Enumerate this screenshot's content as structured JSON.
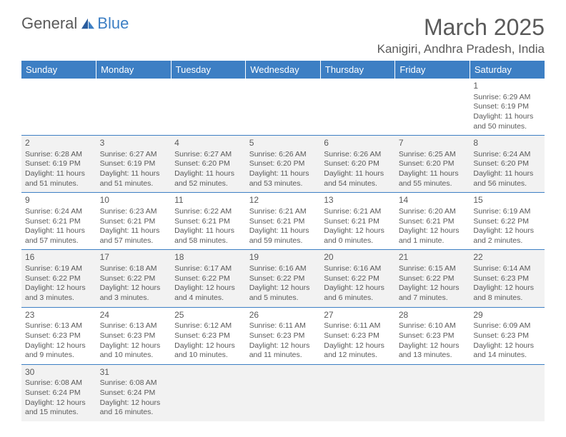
{
  "logo": {
    "text1": "General",
    "text2": "Blue"
  },
  "title": "March 2025",
  "location": "Kanigiri, Andhra Pradesh, India",
  "colors": {
    "header_bg": "#3d7fc4",
    "header_text": "#ffffff",
    "alt_row_bg": "#f2f2f2",
    "text": "#5a5a5a",
    "border": "#3d7fc4"
  },
  "weekdays": [
    "Sunday",
    "Monday",
    "Tuesday",
    "Wednesday",
    "Thursday",
    "Friday",
    "Saturday"
  ],
  "weeks": [
    [
      null,
      null,
      null,
      null,
      null,
      null,
      {
        "n": "1",
        "sr": "Sunrise: 6:29 AM",
        "ss": "Sunset: 6:19 PM",
        "dl": "Daylight: 11 hours and 50 minutes."
      }
    ],
    [
      {
        "n": "2",
        "sr": "Sunrise: 6:28 AM",
        "ss": "Sunset: 6:19 PM",
        "dl": "Daylight: 11 hours and 51 minutes."
      },
      {
        "n": "3",
        "sr": "Sunrise: 6:27 AM",
        "ss": "Sunset: 6:19 PM",
        "dl": "Daylight: 11 hours and 51 minutes."
      },
      {
        "n": "4",
        "sr": "Sunrise: 6:27 AM",
        "ss": "Sunset: 6:20 PM",
        "dl": "Daylight: 11 hours and 52 minutes."
      },
      {
        "n": "5",
        "sr": "Sunrise: 6:26 AM",
        "ss": "Sunset: 6:20 PM",
        "dl": "Daylight: 11 hours and 53 minutes."
      },
      {
        "n": "6",
        "sr": "Sunrise: 6:26 AM",
        "ss": "Sunset: 6:20 PM",
        "dl": "Daylight: 11 hours and 54 minutes."
      },
      {
        "n": "7",
        "sr": "Sunrise: 6:25 AM",
        "ss": "Sunset: 6:20 PM",
        "dl": "Daylight: 11 hours and 55 minutes."
      },
      {
        "n": "8",
        "sr": "Sunrise: 6:24 AM",
        "ss": "Sunset: 6:20 PM",
        "dl": "Daylight: 11 hours and 56 minutes."
      }
    ],
    [
      {
        "n": "9",
        "sr": "Sunrise: 6:24 AM",
        "ss": "Sunset: 6:21 PM",
        "dl": "Daylight: 11 hours and 57 minutes."
      },
      {
        "n": "10",
        "sr": "Sunrise: 6:23 AM",
        "ss": "Sunset: 6:21 PM",
        "dl": "Daylight: 11 hours and 57 minutes."
      },
      {
        "n": "11",
        "sr": "Sunrise: 6:22 AM",
        "ss": "Sunset: 6:21 PM",
        "dl": "Daylight: 11 hours and 58 minutes."
      },
      {
        "n": "12",
        "sr": "Sunrise: 6:21 AM",
        "ss": "Sunset: 6:21 PM",
        "dl": "Daylight: 11 hours and 59 minutes."
      },
      {
        "n": "13",
        "sr": "Sunrise: 6:21 AM",
        "ss": "Sunset: 6:21 PM",
        "dl": "Daylight: 12 hours and 0 minutes."
      },
      {
        "n": "14",
        "sr": "Sunrise: 6:20 AM",
        "ss": "Sunset: 6:21 PM",
        "dl": "Daylight: 12 hours and 1 minute."
      },
      {
        "n": "15",
        "sr": "Sunrise: 6:19 AM",
        "ss": "Sunset: 6:22 PM",
        "dl": "Daylight: 12 hours and 2 minutes."
      }
    ],
    [
      {
        "n": "16",
        "sr": "Sunrise: 6:19 AM",
        "ss": "Sunset: 6:22 PM",
        "dl": "Daylight: 12 hours and 3 minutes."
      },
      {
        "n": "17",
        "sr": "Sunrise: 6:18 AM",
        "ss": "Sunset: 6:22 PM",
        "dl": "Daylight: 12 hours and 3 minutes."
      },
      {
        "n": "18",
        "sr": "Sunrise: 6:17 AM",
        "ss": "Sunset: 6:22 PM",
        "dl": "Daylight: 12 hours and 4 minutes."
      },
      {
        "n": "19",
        "sr": "Sunrise: 6:16 AM",
        "ss": "Sunset: 6:22 PM",
        "dl": "Daylight: 12 hours and 5 minutes."
      },
      {
        "n": "20",
        "sr": "Sunrise: 6:16 AM",
        "ss": "Sunset: 6:22 PM",
        "dl": "Daylight: 12 hours and 6 minutes."
      },
      {
        "n": "21",
        "sr": "Sunrise: 6:15 AM",
        "ss": "Sunset: 6:22 PM",
        "dl": "Daylight: 12 hours and 7 minutes."
      },
      {
        "n": "22",
        "sr": "Sunrise: 6:14 AM",
        "ss": "Sunset: 6:23 PM",
        "dl": "Daylight: 12 hours and 8 minutes."
      }
    ],
    [
      {
        "n": "23",
        "sr": "Sunrise: 6:13 AM",
        "ss": "Sunset: 6:23 PM",
        "dl": "Daylight: 12 hours and 9 minutes."
      },
      {
        "n": "24",
        "sr": "Sunrise: 6:13 AM",
        "ss": "Sunset: 6:23 PM",
        "dl": "Daylight: 12 hours and 10 minutes."
      },
      {
        "n": "25",
        "sr": "Sunrise: 6:12 AM",
        "ss": "Sunset: 6:23 PM",
        "dl": "Daylight: 12 hours and 10 minutes."
      },
      {
        "n": "26",
        "sr": "Sunrise: 6:11 AM",
        "ss": "Sunset: 6:23 PM",
        "dl": "Daylight: 12 hours and 11 minutes."
      },
      {
        "n": "27",
        "sr": "Sunrise: 6:11 AM",
        "ss": "Sunset: 6:23 PM",
        "dl": "Daylight: 12 hours and 12 minutes."
      },
      {
        "n": "28",
        "sr": "Sunrise: 6:10 AM",
        "ss": "Sunset: 6:23 PM",
        "dl": "Daylight: 12 hours and 13 minutes."
      },
      {
        "n": "29",
        "sr": "Sunrise: 6:09 AM",
        "ss": "Sunset: 6:23 PM",
        "dl": "Daylight: 12 hours and 14 minutes."
      }
    ],
    [
      {
        "n": "30",
        "sr": "Sunrise: 6:08 AM",
        "ss": "Sunset: 6:24 PM",
        "dl": "Daylight: 12 hours and 15 minutes."
      },
      {
        "n": "31",
        "sr": "Sunrise: 6:08 AM",
        "ss": "Sunset: 6:24 PM",
        "dl": "Daylight: 12 hours and 16 minutes."
      },
      null,
      null,
      null,
      null,
      null
    ]
  ]
}
